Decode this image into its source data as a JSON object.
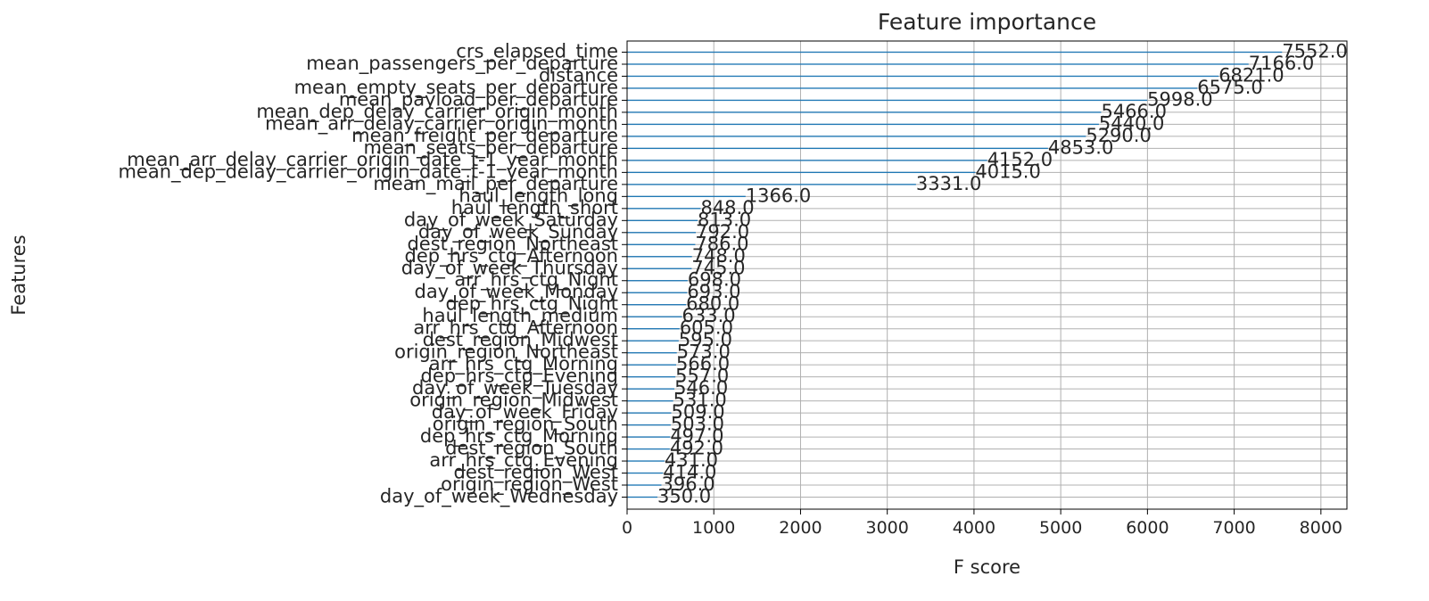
{
  "chart_data": {
    "type": "bar",
    "orientation": "horizontal",
    "title": "Feature importance",
    "xlabel": "F score",
    "ylabel": "Features",
    "xlim": [
      0,
      8300
    ],
    "xticks": [
      0,
      1000,
      2000,
      3000,
      4000,
      5000,
      6000,
      7000,
      8000
    ],
    "xtick_labels": [
      "0",
      "1000",
      "2000",
      "3000",
      "4000",
      "5000",
      "6000",
      "7000",
      "8000"
    ],
    "grid": true,
    "bar_color": "#1f77b4",
    "categories": [
      "crs_elapsed_time",
      "mean_passengers_per_departure",
      "distance",
      "mean_empty_seats_per_departure",
      "mean_payload_per_departure",
      "mean_dep_delay_carrier_origin_month",
      "mean_arr_delay_carrier_origin_month",
      "mean_freight_per_departure",
      "mean_seats_per_departure",
      "mean_arr_delay_carrier_origin_date_t-1_year_month",
      "mean_dep_delay_carrier_origin_date_t-1_year_month",
      "mean_mail_per_departure",
      "haul_length_long",
      "haul_length_short",
      "day_of_week_Saturday",
      "day_of_week_Sunday",
      "dest_region_Northeast",
      "dep_hrs_ctg_Afternoon",
      "day_of_week_Thursday",
      "arr_hrs_ctg_Night",
      "day_of_week_Monday",
      "dep_hrs_ctg_Night",
      "haul_length_medium",
      "arr_hrs_ctg_Afternoon",
      "dest_region_Midwest",
      "origin_region_Northeast",
      "arr_hrs_ctg_Morning",
      "dep_hrs_ctg_Evening",
      "day_of_week_Tuesday",
      "origin_region_Midwest",
      "day_of_week_Friday",
      "origin_region_South",
      "dep_hrs_ctg_Morning",
      "dest_region_South",
      "arr_hrs_ctg_Evening",
      "dest_region_West",
      "origin_region_West",
      "day_of_week_Wednesday"
    ],
    "values": [
      7552.0,
      7166.0,
      6821.0,
      6575.0,
      5998.0,
      5466.0,
      5440.0,
      5290.0,
      4853.0,
      4152.0,
      4015.0,
      3331.0,
      1366.0,
      848.0,
      813.0,
      792.0,
      786.0,
      748.0,
      745.0,
      698.0,
      693.0,
      680.0,
      633.0,
      605.0,
      595.0,
      573.0,
      566.0,
      557.0,
      546.0,
      531.0,
      509.0,
      503.0,
      497.0,
      492.0,
      431.0,
      414.0,
      396.0,
      350.0
    ],
    "data_labels": [
      "7552.0",
      "7166.0",
      "6821.0",
      "6575.0",
      "5998.0",
      "5466.0",
      "5440.0",
      "5290.0",
      "4853.0",
      "4152.0",
      "4015.0",
      "3331.0",
      "1366.0",
      "848.0",
      "813.0",
      "792.0",
      "786.0",
      "748.0",
      "745.0",
      "698.0",
      "693.0",
      "680.0",
      "633.0",
      "605.0",
      "595.0",
      "573.0",
      "566.0",
      "557.0",
      "546.0",
      "531.0",
      "509.0",
      "503.0",
      "497.0",
      "492.0",
      "431.0",
      "414.0",
      "396.0",
      "350.0"
    ]
  }
}
